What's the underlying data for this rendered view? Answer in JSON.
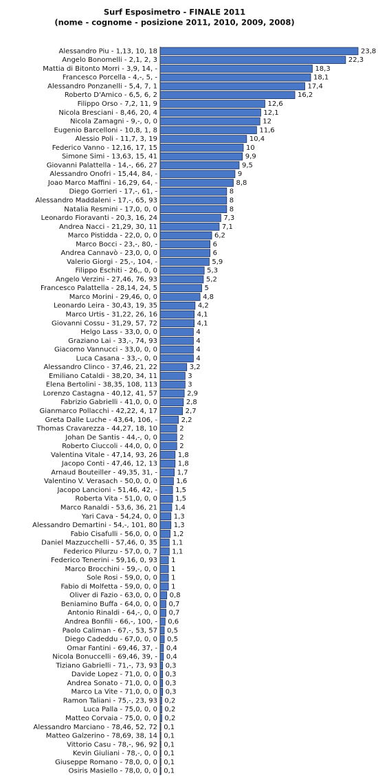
{
  "chart_data": {
    "type": "barh",
    "title": "Surf Esposimetro - FINALE 2011",
    "subtitle": "(nome - cognome - posizione 2011, 2010, 2009, 2008)",
    "color": "#4a78c8",
    "categories": [
      "Alessandro Piu - 1,13, 10, 18",
      "Angelo Bonomelli - 2,1, 2, 3",
      "Mattia di Bitonto Morri - 3,9, 14, -",
      "Francesco Porcella - 4,-, 5, -",
      "Alessandro Ponzanelli - 5,4, 7, 1",
      "Roberto D'Amico - 6,5, 6, 2",
      "Filippo Orso - 7,2, 11, 9",
      "Nicola Bresciani - 8,46, 20, 4",
      "Nicola Zamagni - 9,-, 0, 0",
      "Eugenio Barcelloni - 10,8, 1, 8",
      "Alessio Poli - 11,7, 3, 19",
      "Federico Vanno - 12,16, 17, 15",
      "Simone Simi - 13,63, 15, 41",
      "Giovanni Palattella - 14,-, 66, 27",
      "Alessandro Onofri - 15,44, 84, -",
      "Joao Marco Maffini - 16,29, 64, -",
      "Diego Gorrieri - 17,-, 61, -",
      "Alessandro Maddaleni - 17,-, 65, 93",
      "Natalia Resmini - 17,0, 0, 0",
      "Leonardo Fioravanti - 20,3, 16, 24",
      "Andrea Nacci - 21,29, 30, 11",
      "Marco Pistidda - 22,0, 0, 0",
      "Marco Bocci - 23,-, 80, -",
      "Andrea Cannavò - 23,0, 0, 0",
      "Valerio Giorgi - 25,-, 104, -",
      "Filippo Eschiti - 26,, 0, 0",
      "Angelo Verzini - 27,46, 76, 93",
      "Francesco Palattella - 28,14, 24, 5",
      "Marco Morini - 29,46, 0, 0",
      "Leonardo Leira - 30,43, 19, 35",
      "Marco Urtis - 31,22, 26, 16",
      "Giovanni Cossu - 31,29, 57, 72",
      "Helgo Lass - 33,0, 0, 0",
      "Graziano Lai - 33,-, 74, 93",
      "Giacomo Vannucci - 33,0, 0, 0",
      "Luca Casana - 33,-, 0, 0",
      "Alessandro Clinco - 37,46, 21, 22",
      "Emiliano Cataldi - 38,20, 34, 11",
      "Elena Bertolini - 38,35, 108, 113",
      "Lorenzo Castagna - 40,12, 41, 57",
      "Fabrizio Gabrielli - 41,0, 0, 0",
      "Gianmarco Pollacchi - 42,22, 4, 17",
      "Greta Dalle Luche - 43,64, 106, -",
      "Thomas Cravarezza - 44,27, 18, 10",
      "Johan De Santis - 44,-, 0, 0",
      "Roberto Ciuccoli - 44,0, 0, 0",
      "Valentina Vitale - 47,14, 93, 26",
      "Jacopo Conti - 47,46, 12, 13",
      "Arnaud Bouteiller - 49,35, 31, -",
      "Valentino V. Verasach - 50,0, 0, 0",
      "Jacopo Lancioni - 51,46, 42, -",
      "Roberta Vita - 51,0, 0, 0",
      "Marco Ranaldi - 53,6, 36, 21",
      "Yari Cava - 54,24, 0, 0",
      "Alessandro Demartini - 54,-, 101, 80",
      "Fabio Cisafulli - 56,0, 0, 0",
      "Daniel Mazzucchelli - 57,46, 0, 35",
      "Federico Pilurzu - 57,0, 0, 7",
      "Federico Tenerini - 59,16, 0, 93",
      "Marco Brocchini - 59,-, 0, 0",
      "Sole Rosi - 59,0, 0, 0",
      "Fabio di Molfetta - 59,0, 0, 0",
      "Oliver di Fazio - 63,0, 0, 0",
      "Beniamino Buffa - 64,0, 0, 0",
      "Antonio Rinaldi - 64,-, 0, 0",
      "Andrea Bonfili - 66,-, 100, -",
      "Paolo Caliman - 67,-, 53, 57",
      "Diego Cadeddu - 67,0, 0, 0",
      "Omar Fantini - 69,46, 37, -",
      "Nicola Bonuccelli - 69,46, 39, -",
      "Tiziano Gabrielli - 71,-, 73, 93",
      "Davide Lopez - 71,0, 0, 0",
      "Andrea Sonato - 71,0, 0, 0",
      "Marco La Vite - 71,0, 0, 0",
      "Ramon Taliani - 75,-, 23, 93",
      "Luca Palla - 75,0, 0, 0",
      "Matteo Corvaia - 75,0, 0, 0",
      "Alessandro Marciano - 78,46, 52, 72",
      "Matteo Galzerino - 78,69, 38, 14",
      "Vittorio Casu - 78,-, 96, 92",
      "Kevin Giuliani - 78,-, 0, 0",
      "Giuseppe Romano - 78,0, 0, 0",
      "Osiris Masiello - 78,0, 0, 0"
    ],
    "values": [
      23.8,
      22.3,
      18.3,
      18.1,
      17.4,
      16.2,
      12.6,
      12.1,
      12,
      11.6,
      10.4,
      10,
      9.9,
      9.5,
      9,
      8.8,
      8,
      8,
      8,
      7.3,
      7.1,
      6.2,
      6,
      6,
      5.9,
      5.3,
      5.2,
      5,
      4.8,
      4.2,
      4.1,
      4.1,
      4,
      4,
      4,
      4,
      3.2,
      3,
      3,
      2.9,
      2.8,
      2.7,
      2.2,
      2,
      2,
      2,
      1.8,
      1.8,
      1.7,
      1.6,
      1.5,
      1.5,
      1.4,
      1.3,
      1.3,
      1.2,
      1.1,
      1.1,
      1,
      1,
      1,
      1,
      0.8,
      0.7,
      0.7,
      0.6,
      0.5,
      0.5,
      0.4,
      0.4,
      0.3,
      0.3,
      0.3,
      0.3,
      0.2,
      0.2,
      0.2,
      0.1,
      0.1,
      0.1,
      0.1,
      0.1,
      0.1
    ],
    "value_labels": [
      "23,8",
      "22,3",
      "18,3",
      "18,1",
      "17,4",
      "16,2",
      "12,6",
      "12,1",
      "12",
      "11,6",
      "10,4",
      "10",
      "9,9",
      "9,5",
      "9",
      "8,8",
      "8",
      "8",
      "8",
      "7,3",
      "7,1",
      "6,2",
      "6",
      "6",
      "5,9",
      "5,3",
      "5,2",
      "5",
      "4,8",
      "4,2",
      "4,1",
      "4,1",
      "4",
      "4",
      "4",
      "4",
      "3,2",
      "3",
      "3",
      "2,9",
      "2,8",
      "2,7",
      "2,2",
      "2",
      "2",
      "2",
      "1,8",
      "1,8",
      "1,7",
      "1,6",
      "1,5",
      "1,5",
      "1,4",
      "1,3",
      "1,3",
      "1,2",
      "1,1",
      "1,1",
      "1",
      "1",
      "1",
      "1",
      "0,8",
      "0,7",
      "0,7",
      "0,6",
      "0,5",
      "0,5",
      "0,4",
      "0,4",
      "0,3",
      "0,3",
      "0,3",
      "0,3",
      "0,2",
      "0,2",
      "0,2",
      "0,1",
      "0,1",
      "0,1",
      "0,1",
      "0,1",
      "0,1"
    ]
  }
}
